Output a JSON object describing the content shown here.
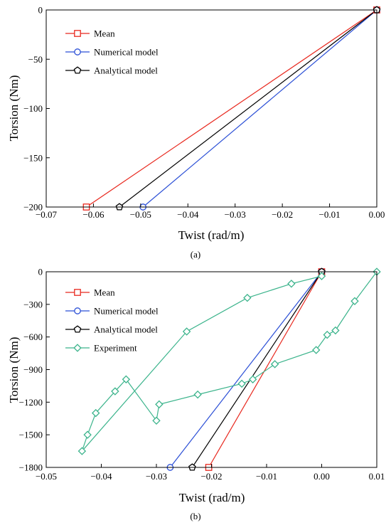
{
  "chart_data": [
    {
      "type": "line",
      "caption": "(a)",
      "xlabel": "Twist (rad/m)",
      "ylabel": "Torsion (Nm)",
      "xlim": [
        -0.07,
        0.0
      ],
      "ylim": [
        -200,
        0
      ],
      "xticks": [
        -0.07,
        -0.06,
        -0.05,
        -0.04,
        -0.03,
        -0.02,
        -0.01,
        0.0
      ],
      "xtick_labels": [
        "−0.07",
        "−0.06",
        "−0.05",
        "−0.04",
        "−0.03",
        "−0.02",
        "−0.01",
        "0.00"
      ],
      "yticks": [
        0,
        -50,
        -100,
        -150,
        -200
      ],
      "ytick_labels": [
        "0",
        "−50",
        "−100",
        "−150",
        "−200"
      ],
      "legend_position": "top-left",
      "grid": false,
      "series": [
        {
          "name": "Mean",
          "color": "#e8281e",
          "marker": "square",
          "x": [
            0.0,
            -0.0615
          ],
          "y": [
            0,
            -200
          ]
        },
        {
          "name": "Numerical model",
          "color": "#2b4fd6",
          "marker": "circle",
          "x": [
            0.0,
            -0.0495
          ],
          "y": [
            0,
            -200
          ]
        },
        {
          "name": "Analytical model",
          "color": "#000000",
          "marker": "pentagon",
          "x": [
            0.0,
            -0.0545
          ],
          "y": [
            0,
            -200
          ]
        }
      ]
    },
    {
      "type": "line",
      "caption": "(b)",
      "xlabel": "Twist (rad/m)",
      "ylabel": "Torsion (Nm)",
      "xlim": [
        -0.05,
        0.01
      ],
      "ylim": [
        -1800,
        0
      ],
      "xticks": [
        -0.05,
        -0.04,
        -0.03,
        -0.02,
        -0.01,
        0.0,
        0.01
      ],
      "xtick_labels": [
        "−0.05",
        "−0.04",
        "−0.03",
        "−0.02",
        "−0.01",
        "0.00",
        "0.01"
      ],
      "yticks": [
        0,
        -300,
        -600,
        -900,
        -1200,
        -1500,
        -1800
      ],
      "ytick_labels": [
        "0",
        "−300",
        "−600",
        "−900",
        "−1200",
        "−1500",
        "−1800"
      ],
      "legend_position": "top-left",
      "grid": false,
      "series": [
        {
          "name": "Mean",
          "color": "#e8281e",
          "marker": "square",
          "x": [
            0.0,
            -0.0205
          ],
          "y": [
            0,
            -1800
          ]
        },
        {
          "name": "Numerical model",
          "color": "#2b4fd6",
          "marker": "circle",
          "x": [
            0.0,
            -0.0275
          ],
          "y": [
            0,
            -1800
          ]
        },
        {
          "name": "Analytical model",
          "color": "#000000",
          "marker": "pentagon",
          "x": [
            0.0,
            -0.0235
          ],
          "y": [
            0,
            -1800
          ]
        },
        {
          "name": "Experiment",
          "color": "#3cb48c",
          "marker": "diamond",
          "x": [
            0.01,
            0.006,
            0.0025,
            0.001,
            -0.001,
            -0.0085,
            -0.0125,
            -0.0145,
            -0.0225,
            -0.0295,
            -0.03,
            -0.0355,
            -0.0375,
            -0.041,
            -0.0425,
            -0.0435,
            -0.0245,
            -0.0135,
            -0.0055,
            0.0
          ],
          "y": [
            0,
            -270,
            -540,
            -580,
            -720,
            -850,
            -990,
            -1030,
            -1130,
            -1220,
            -1370,
            -990,
            -1100,
            -1300,
            -1500,
            -1650,
            -550,
            -240,
            -110,
            -40
          ]
        }
      ]
    }
  ]
}
